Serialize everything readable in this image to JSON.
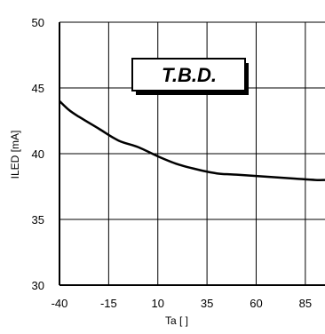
{
  "chart_data": {
    "type": "line",
    "xlabel": "Ta [ ]",
    "ylabel": "ILED [mA]",
    "xlim": [
      -40,
      95
    ],
    "ylim": [
      30,
      50
    ],
    "x_ticks": [
      -40,
      -15,
      10,
      35,
      60,
      85
    ],
    "y_ticks": [
      30,
      35,
      40,
      45,
      50
    ],
    "x_tick_labels": [
      "-40",
      "-15",
      "10",
      "35",
      "60",
      "85"
    ],
    "y_tick_labels": [
      "30",
      "35",
      "40",
      "45",
      "50"
    ],
    "grid": true,
    "annotation": "T.B.D.",
    "series": [
      {
        "x": [
          -40,
          -35,
          -30,
          -20,
          -10,
          0,
          10,
          20,
          30,
          40,
          50,
          60,
          70,
          80,
          90,
          95
        ],
        "y": [
          44.0,
          43.3,
          42.8,
          41.9,
          41.0,
          40.5,
          39.8,
          39.2,
          38.8,
          38.5,
          38.4,
          38.3,
          38.2,
          38.1,
          38.0,
          38.0
        ]
      }
    ],
    "colors": {
      "line": "#000000",
      "grid": "#000000",
      "background": "#ffffff"
    }
  }
}
